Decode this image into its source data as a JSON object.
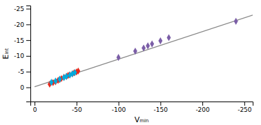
{
  "chart_data": {
    "type": "scatter",
    "xlabel": "Vₘᵢₙ",
    "ylabel": "Eᵢₙₜ",
    "xlim": [
      5,
      -260
    ],
    "ylim": [
      4.5,
      -26
    ],
    "xticks": [
      0,
      -50,
      -100,
      -150,
      -200,
      -250
    ],
    "yticks": [
      0,
      -5,
      -10,
      -15,
      -20,
      -25
    ],
    "grid": false,
    "series": [
      {
        "type": "scatter",
        "marker": "diamond",
        "color": "#e8291c",
        "x": [
          -18,
          -22,
          -25,
          -28,
          -30,
          -32,
          -35,
          -38,
          -40,
          -42,
          -45,
          -47,
          -50,
          -52
        ],
        "values": [
          -1.0,
          -1.5,
          -1.8,
          -2.2,
          -2.5,
          -2.8,
          -3.2,
          -3.5,
          -3.8,
          -4.0,
          -4.3,
          -4.6,
          -4.9,
          -5.2
        ]
      },
      {
        "type": "scatter",
        "marker": "diamond",
        "color": "#00aadd",
        "x": [
          -20,
          -25,
          -30,
          -35,
          -38,
          -42,
          -45,
          -48
        ],
        "values": [
          -1.6,
          -2.0,
          -2.6,
          -3.1,
          -3.5,
          -3.9,
          -4.3,
          -4.7
        ]
      },
      {
        "type": "scatter",
        "marker": "diamond",
        "color": "#7b5ea7",
        "x": [
          -100,
          -120,
          -130,
          -135,
          -140,
          -150,
          -160,
          -240
        ],
        "values": [
          -9.5,
          -11.5,
          -12.5,
          -13.2,
          -13.8,
          -14.8,
          -15.8,
          -21.0
        ]
      },
      {
        "type": "line",
        "line_style": "solid",
        "color": "#888888",
        "x": [
          0,
          -260
        ],
        "values": [
          -0.2,
          -22.95
        ]
      }
    ]
  }
}
